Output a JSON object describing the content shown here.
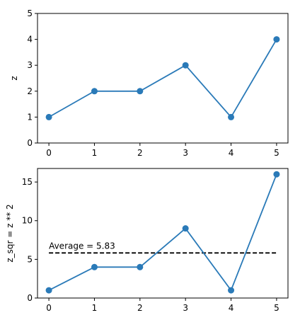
{
  "chart_data": [
    {
      "type": "line",
      "x": [
        0,
        1,
        2,
        3,
        4,
        5
      ],
      "series": [
        {
          "values": [
            1,
            2,
            2,
            3,
            1,
            4
          ],
          "color": "#2a7ab8",
          "marker": "circle"
        }
      ],
      "title": "",
      "xlabel": "",
      "ylabel": "z",
      "xticks": [
        0,
        1,
        2,
        3,
        4,
        5
      ],
      "yticks": [
        0,
        1,
        2,
        3,
        4,
        5
      ],
      "xlim": [
        -0.25,
        5.25
      ],
      "ylim": [
        0,
        5
      ],
      "grid": false
    },
    {
      "type": "line",
      "x": [
        0,
        1,
        2,
        3,
        4,
        5
      ],
      "series": [
        {
          "values": [
            1,
            4,
            4,
            9,
            1,
            16
          ],
          "color": "#2a7ab8",
          "marker": "circle"
        }
      ],
      "reference_line": {
        "y": 5.83,
        "x_range": [
          0,
          5
        ],
        "style": "dashed",
        "color": "#000000",
        "label": "Average = 5.83"
      },
      "title": "",
      "xlabel": "",
      "ylabel": "z_sqr = z ** 2",
      "xticks": [
        0,
        1,
        2,
        3,
        4,
        5
      ],
      "yticks": [
        0,
        5,
        10,
        15
      ],
      "xlim": [
        -0.25,
        5.25
      ],
      "ylim": [
        0,
        16.75
      ],
      "grid": false
    }
  ]
}
